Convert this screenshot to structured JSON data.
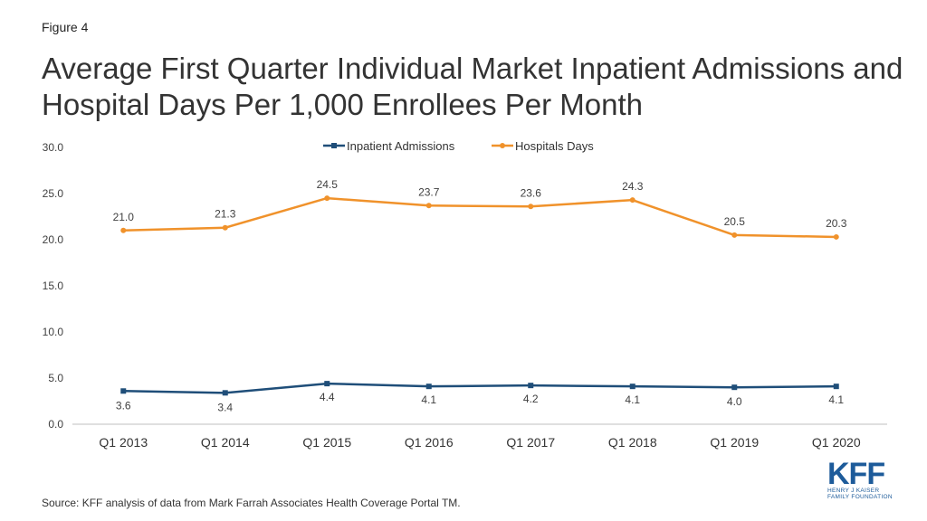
{
  "figure_label": "Figure 4",
  "title": "Average First Quarter Individual Market Inpatient Admissions and Hospital Days Per 1,000 Enrollees Per Month",
  "source": "Source: KFF analysis of data from Mark Farrah Associates Health Coverage Portal TM.",
  "logo": {
    "mark": "KFF",
    "line1": "HENRY J KAISER",
    "line2": "FAMILY FOUNDATION",
    "color": "#1d5b9a"
  },
  "chart_data": {
    "type": "line",
    "categories": [
      "Q1 2013",
      "Q1 2014",
      "Q1 2015",
      "Q1 2016",
      "Q1 2017",
      "Q1 2018",
      "Q1 2019",
      "Q1 2020"
    ],
    "series": [
      {
        "name": "Inpatient Admissions",
        "color": "#1f4e79",
        "marker": "square",
        "values": [
          3.6,
          3.4,
          4.4,
          4.1,
          4.2,
          4.1,
          4.0,
          4.1
        ],
        "labels": [
          "3.6",
          "3.4",
          "4.4",
          "4.1",
          "4.2",
          "4.1",
          "4.0",
          "4.1"
        ]
      },
      {
        "name": "Hospitals Days",
        "color": "#f0922b",
        "marker": "circle",
        "values": [
          21.0,
          21.3,
          24.5,
          23.7,
          23.6,
          24.3,
          20.5,
          20.3
        ],
        "labels": [
          "21.0",
          "21.3",
          "24.5",
          "23.7",
          "23.6",
          "24.3",
          "20.5",
          "20.3"
        ]
      }
    ],
    "ylim": [
      0,
      30
    ],
    "yticks": [
      "0.0",
      "5.0",
      "10.0",
      "15.0",
      "20.0",
      "25.0",
      "30.0"
    ],
    "legend_position": "top-center",
    "grid": false
  }
}
